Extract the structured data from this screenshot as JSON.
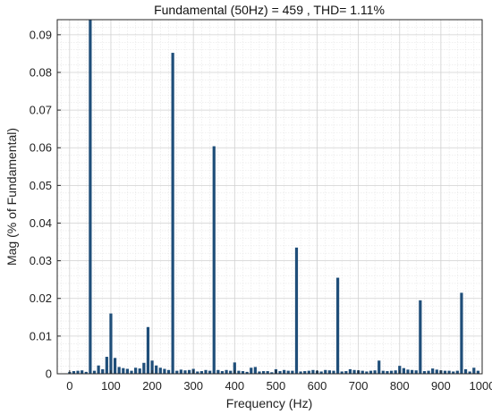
{
  "chart_data": {
    "type": "bar",
    "title": "Fundamental (50Hz) = 459 , THD= 1.11%",
    "xlabel": "Frequency (Hz)",
    "ylabel": "Mag (% of Fundamental)",
    "xlim": [
      -30,
      1000
    ],
    "ylim": [
      0,
      0.094
    ],
    "xticks": [
      0,
      100,
      200,
      300,
      400,
      500,
      600,
      700,
      800,
      900,
      1000
    ],
    "yticks": [
      0,
      0.01,
      0.02,
      0.03,
      0.04,
      0.05,
      0.06,
      0.07,
      0.08,
      0.09
    ],
    "ytick_labels": [
      "0",
      "0.01",
      "0.02",
      "0.03",
      "0.04",
      "0.05",
      "0.06",
      "0.07",
      "0.08",
      "0.09"
    ],
    "grid": true,
    "bar_color": "#1f4e79",
    "x": [
      0,
      10,
      20,
      30,
      40,
      50,
      60,
      70,
      80,
      90,
      100,
      110,
      120,
      130,
      140,
      150,
      160,
      170,
      180,
      190,
      200,
      210,
      220,
      230,
      240,
      250,
      260,
      270,
      280,
      290,
      300,
      310,
      320,
      330,
      340,
      350,
      360,
      370,
      380,
      390,
      400,
      410,
      420,
      430,
      440,
      450,
      460,
      470,
      480,
      490,
      500,
      510,
      520,
      530,
      540,
      550,
      560,
      570,
      580,
      590,
      600,
      610,
      620,
      630,
      640,
      650,
      660,
      670,
      680,
      690,
      700,
      710,
      720,
      730,
      740,
      750,
      760,
      770,
      780,
      790,
      800,
      810,
      820,
      830,
      840,
      850,
      860,
      870,
      880,
      890,
      900,
      910,
      920,
      930,
      940,
      950,
      960,
      970,
      980,
      990
    ],
    "values": [
      0.0005,
      0.0007,
      0.0008,
      0.0009,
      0.0005,
      0.094,
      0.0008,
      0.0022,
      0.0012,
      0.0045,
      0.016,
      0.0042,
      0.0018,
      0.0015,
      0.0013,
      0.0008,
      0.0016,
      0.0014,
      0.0029,
      0.0124,
      0.0035,
      0.0022,
      0.0016,
      0.0013,
      0.001,
      0.0852,
      0.0008,
      0.0011,
      0.0009,
      0.001,
      0.0013,
      0.0006,
      0.0007,
      0.001,
      0.0008,
      0.0604,
      0.001,
      0.0007,
      0.001,
      0.0008,
      0.003,
      0.0008,
      0.0007,
      0.0005,
      0.0016,
      0.0018,
      0.0006,
      0.0007,
      0.0007,
      0.0004,
      0.0012,
      0.0007,
      0.001,
      0.0008,
      0.0008,
      0.0335,
      0.0006,
      0.0007,
      0.0008,
      0.001,
      0.0008,
      0.0006,
      0.001,
      0.0009,
      0.0008,
      0.0255,
      0.0006,
      0.0007,
      0.0012,
      0.001,
      0.0009,
      0.0008,
      0.0006,
      0.0008,
      0.0009,
      0.0035,
      0.0008,
      0.0007,
      0.0008,
      0.0009,
      0.0021,
      0.0015,
      0.0011,
      0.001,
      0.0009,
      0.0195,
      0.0007,
      0.0008,
      0.0014,
      0.0011,
      0.0009,
      0.0008,
      0.0008,
      0.0006,
      0.0008,
      0.0215,
      0.0012,
      0.0006,
      0.0016,
      0.0008
    ]
  }
}
